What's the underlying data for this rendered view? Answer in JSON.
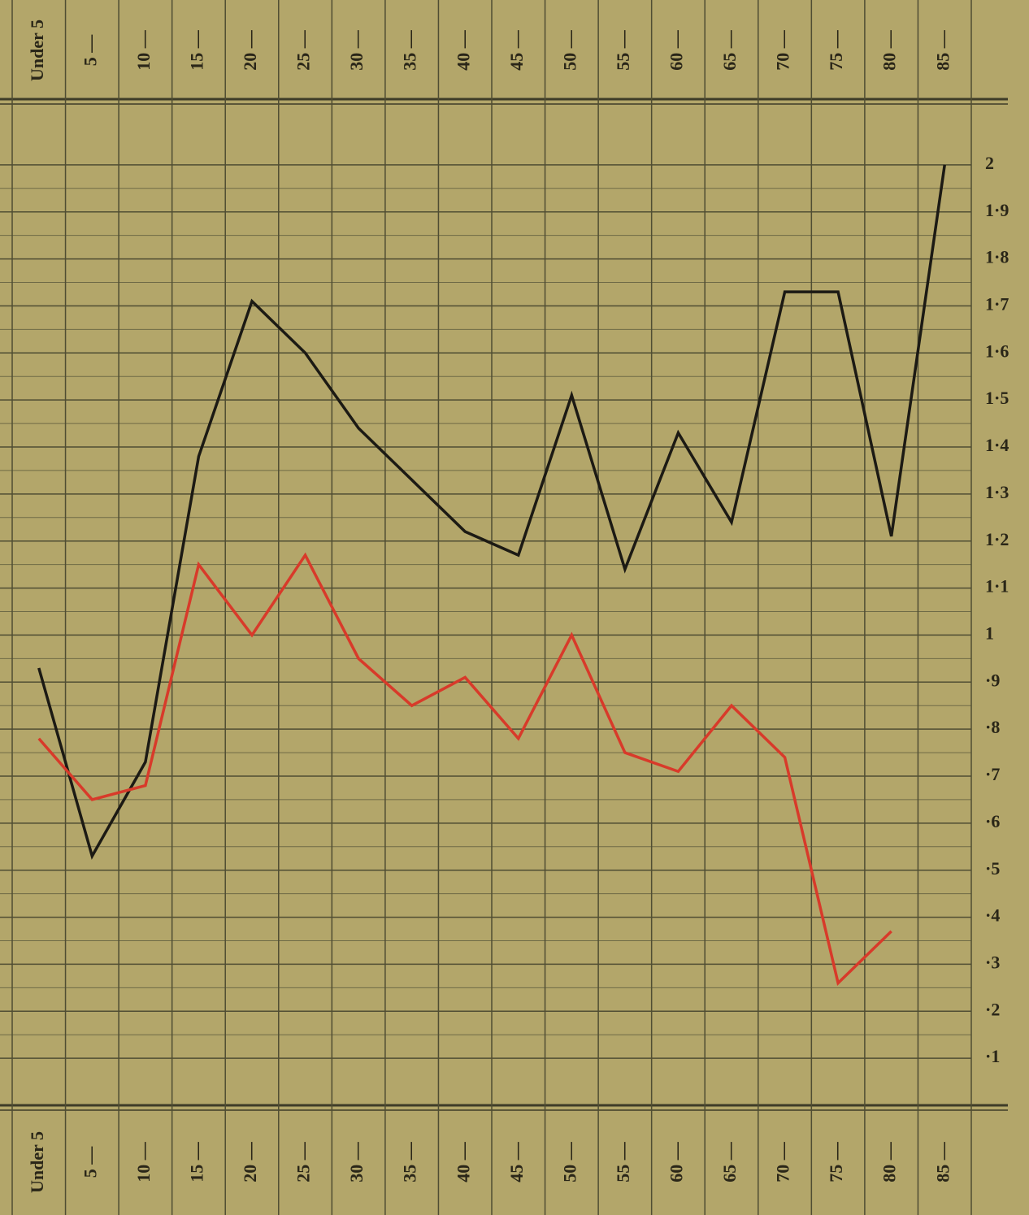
{
  "chart_data": {
    "type": "line",
    "categories": [
      "Under 5",
      "5 —",
      "10 —",
      "15 —",
      "20 —",
      "25 —",
      "30 —",
      "35 —",
      "40 —",
      "45 —",
      "50 —",
      "55 —",
      "60 —",
      "65 —",
      "70 —",
      "75 —",
      "80 —",
      "85 —"
    ],
    "series": [
      {
        "color": "#1c1a14",
        "values": [
          0.93,
          0.53,
          0.73,
          1.38,
          1.71,
          1.6,
          1.44,
          1.33,
          1.22,
          1.17,
          1.51,
          1.14,
          1.43,
          1.24,
          1.73,
          1.73,
          1.21,
          2.0
        ]
      },
      {
        "color": "#d83a2a",
        "values": [
          0.78,
          0.65,
          0.68,
          1.15,
          1.0,
          1.17,
          0.95,
          0.85,
          0.91,
          0.78,
          1.0,
          0.75,
          0.71,
          0.85,
          0.74,
          0.26,
          0.37,
          null
        ]
      }
    ],
    "ylim": [
      0,
      2.1
    ],
    "yticks": [
      {
        "value": 0.1,
        "label": "·1"
      },
      {
        "value": 0.2,
        "label": "·2"
      },
      {
        "value": 0.3,
        "label": "·3"
      },
      {
        "value": 0.4,
        "label": "·4"
      },
      {
        "value": 0.5,
        "label": "·5"
      },
      {
        "value": 0.6,
        "label": "·6"
      },
      {
        "value": 0.7,
        "label": "·7"
      },
      {
        "value": 0.8,
        "label": "·8"
      },
      {
        "value": 0.9,
        "label": "·9"
      },
      1,
      {
        "value": 1.1,
        "label": "1·1"
      },
      {
        "value": 1.2,
        "label": "1·2"
      },
      {
        "value": 1.3,
        "label": "1·3"
      },
      {
        "value": 1.4,
        "label": "1·4"
      },
      {
        "value": 1.5,
        "label": "1·5"
      },
      {
        "value": 1.6,
        "label": "1·6"
      },
      {
        "value": 1.7,
        "label": "1·7"
      },
      {
        "value": 1.8,
        "label": "1·8"
      },
      {
        "value": 1.9,
        "label": "1·9"
      },
      2
    ],
    "grid": true
  }
}
